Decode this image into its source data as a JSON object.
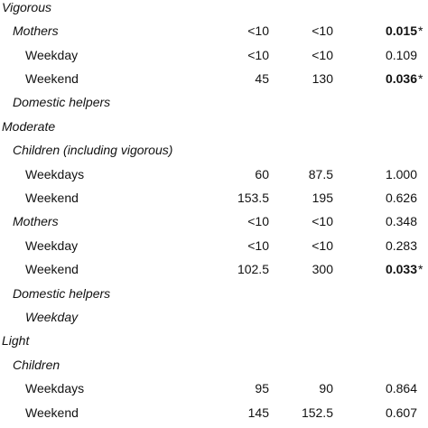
{
  "rows": [
    {
      "label": "Vigorous"
    },
    {
      "label": "Mothers",
      "cells": [
        "<10",
        "<10",
        "0.015"
      ],
      "sig": "*"
    },
    {
      "label": "Weekday",
      "cells": [
        "<10",
        "<10",
        "0.109"
      ]
    },
    {
      "label": "Weekend",
      "cells": [
        "45",
        "130",
        "0.036"
      ],
      "sig": "*"
    },
    {
      "label": "Domestic helpers"
    },
    {
      "label": "Moderate"
    },
    {
      "label": "Children (including vigorous)"
    },
    {
      "label": "Weekdays",
      "cells": [
        "60",
        "87.5",
        "1.000"
      ]
    },
    {
      "label": "Weekend",
      "cells": [
        "153.5",
        "195",
        "0.626"
      ]
    },
    {
      "label": "Mothers",
      "cells": [
        "<10",
        "<10",
        "0.348"
      ]
    },
    {
      "label": "Weekday",
      "cells": [
        "<10",
        "<10",
        "0.283"
      ]
    },
    {
      "label": "Weekend",
      "cells": [
        "102.5",
        "300",
        "0.033"
      ],
      "sig": "*"
    },
    {
      "label": "Domestic helpers"
    },
    {
      "label": "Weekday"
    },
    {
      "label": "Light"
    },
    {
      "label": "Children"
    },
    {
      "label": "Weekdays",
      "cells": [
        "95",
        "90",
        "0.864"
      ]
    },
    {
      "label": "Weekend",
      "cells": [
        "145",
        "152.5",
        "0.607"
      ]
    }
  ]
}
